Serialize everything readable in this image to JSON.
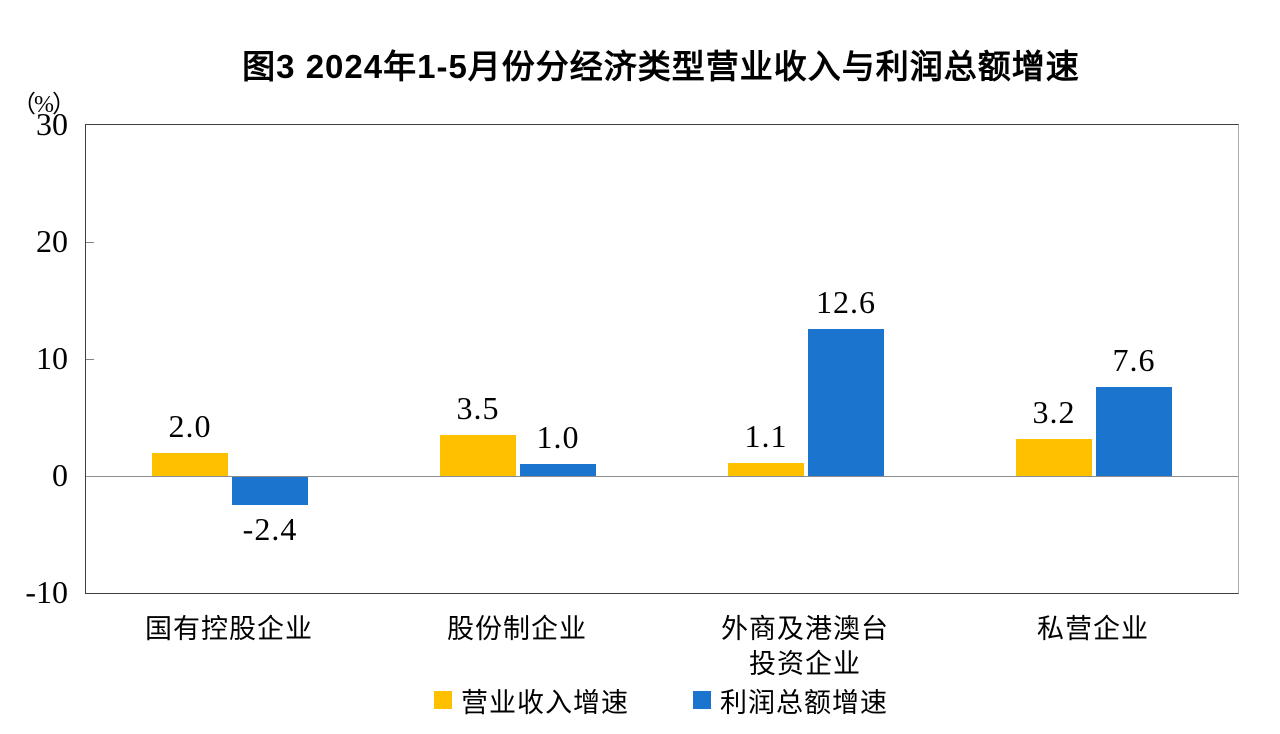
{
  "title": "图3 2024年1-5月份分经济类型营业收入与利润总额增速",
  "y_axis_unit": "（%）",
  "chart_data": {
    "type": "bar",
    "categories": [
      "国有控股企业",
      "股份制企业",
      "外商及港澳台\n投资企业",
      "私营企业"
    ],
    "series": [
      {
        "name": "营业收入增速",
        "color": "#FFC000",
        "values": [
          2.0,
          3.5,
          1.1,
          3.2
        ]
      },
      {
        "name": "利润总额增速",
        "color": "#1B74CE",
        "values": [
          -2.4,
          1.0,
          12.6,
          7.6
        ]
      }
    ],
    "title": "图3 2024年1-5月份分经济类型营业收入与利润总额增速",
    "xlabel": "",
    "ylabel": "（%）",
    "ylim": [
      -10,
      30
    ],
    "yticks": [
      30,
      20,
      10,
      0,
      -10
    ],
    "grid": false,
    "legend_position": "bottom",
    "value_label_decimals": 1,
    "zero_line_color": "#8c8c8c",
    "axis_color": "#3f3f3f"
  }
}
